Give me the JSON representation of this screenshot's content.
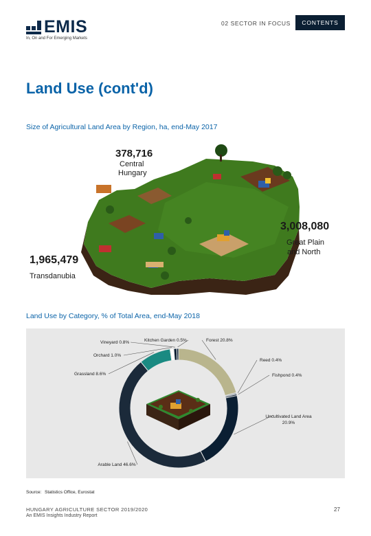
{
  "header": {
    "logo_text": "EMIS",
    "logo_tagline": "In, On and For Emerging Markets",
    "section_label": "02 SECTOR IN FOCUS",
    "contents_label": "CONTENTS"
  },
  "page_title": "Land Use (cont'd)",
  "charts": [
    {
      "title": "Size of Agricultural Land Area by Region, ha, end-May 2017",
      "regions": [
        {
          "value": "378,716",
          "name": "Central Hungary"
        },
        {
          "value": "3,008,080",
          "name": "Great Plain and North"
        },
        {
          "value": "1,965,479",
          "name": "Transdanubia"
        }
      ]
    },
    {
      "title": "Land Use by Category, % of Total Area, end-May 2018"
    }
  ],
  "region_labels": {
    "central_value": "378,716",
    "central_line1": "Central",
    "central_line2": "Hungary",
    "great_value": "3,008,080",
    "great_line1": "Great Plain",
    "great_line2": "and North",
    "trans_value": "1,965,479",
    "trans_line1": "Transdanubia"
  },
  "chart_data": {
    "type": "pie",
    "title": "Land Use by Category, % of Total Area, end-May 2018",
    "categories": [
      "Forest",
      "Reed",
      "Fishpond",
      "Uncultivated Land Area",
      "Arable Land",
      "Grassland",
      "Orchard",
      "Vineyard",
      "Kitchen Garden"
    ],
    "values": [
      20.8,
      0.4,
      0.4,
      20.9,
      46.6,
      8.6,
      1.0,
      0.8,
      0.5
    ],
    "labels": [
      "Forest 20.8%",
      "Reed 0.4%",
      "Fishpond 0.4%",
      "Uncultivated Land Area 20.9%",
      "Arable Land 46.6%",
      "Grassland 8.6%",
      "Orchard 1.0%",
      "Vineyard 0.8%",
      "Kitchen Garden 0.5%"
    ],
    "colors": [
      "#b9b58d",
      "#9aa3ab",
      "#0b1f33",
      "#0b1f33",
      "#1b2a3a",
      "#1a8a82",
      "#ffffff",
      "#0b1f33",
      "#0b1f33"
    ],
    "style": "donut"
  },
  "source": {
    "label": "Source:",
    "value": "Statistics Office, Eurostat"
  },
  "footer": {
    "report_title": "HUNGARY AGRICULTURE SECTOR 2019/2020",
    "report_subtitle": "An EMIS Insights Industry Report",
    "page_number": "27"
  }
}
